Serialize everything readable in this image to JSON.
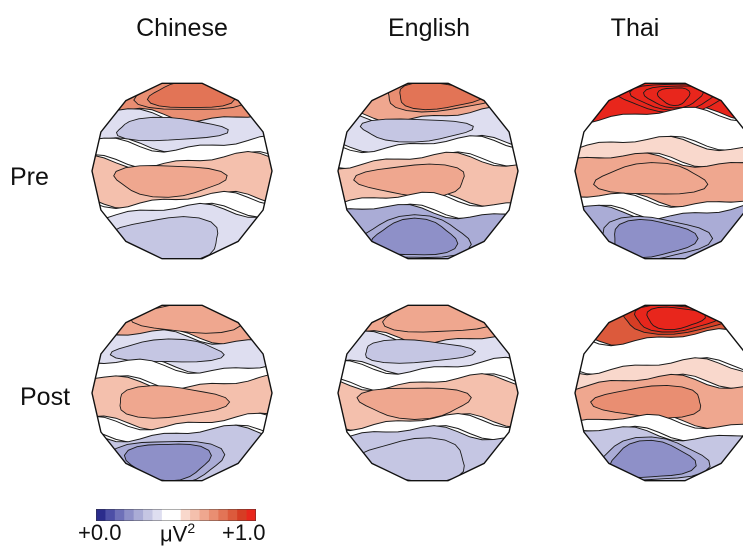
{
  "columns": [
    "Chinese",
    "English",
    "Thai"
  ],
  "rows": [
    "Pre",
    "Post"
  ],
  "colorbar": {
    "min_label": "+0.0",
    "unit_base": "μV",
    "unit_exp": "2",
    "max_label": "+1.0",
    "colors": [
      "#2b2c8c",
      "#4d4fa6",
      "#6e70b8",
      "#8e90c8",
      "#aaacd6",
      "#c5c6e3",
      "#dedef0",
      "#ffffff",
      "#ffffff",
      "#f9d8cc",
      "#f4c0ad",
      "#efa78f",
      "#e98e72",
      "#e27456",
      "#dc5a3c",
      "#d63d24",
      "#e8261c"
    ]
  },
  "maps": [
    {
      "row": "Pre",
      "column": "Chinese",
      "levels": [
        0.73,
        0.35,
        0.52,
        0.64,
        0.52,
        0.36
      ]
    },
    {
      "row": "Pre",
      "column": "English",
      "levels": [
        0.7,
        0.38,
        0.52,
        0.64,
        0.52,
        0.27
      ]
    },
    {
      "row": "Pre",
      "column": "Thai",
      "levels": [
        0.97,
        0.45,
        0.55,
        0.66,
        0.52,
        0.28
      ]
    },
    {
      "row": "Post",
      "column": "Chinese",
      "levels": [
        0.66,
        0.38,
        0.52,
        0.64,
        0.5,
        0.3
      ]
    },
    {
      "row": "Post",
      "column": "English",
      "levels": [
        0.66,
        0.38,
        0.52,
        0.62,
        0.5,
        0.34
      ]
    },
    {
      "row": "Post",
      "column": "Thai",
      "levels": [
        0.88,
        0.48,
        0.55,
        0.68,
        0.5,
        0.3
      ]
    }
  ]
}
